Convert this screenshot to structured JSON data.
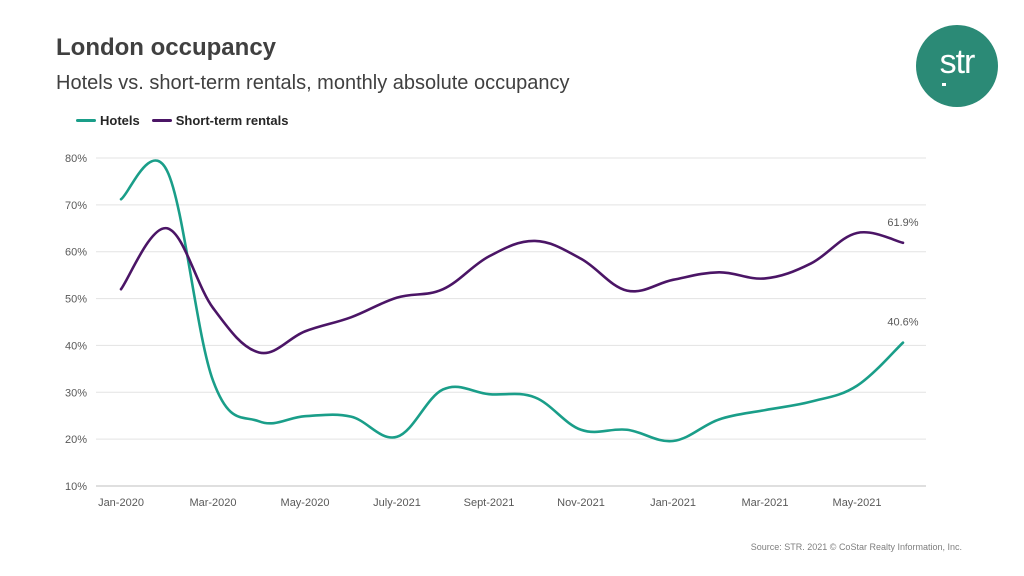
{
  "title": "London occupancy",
  "subtitle": "Hotels vs. short-term rentals, monthly absolute occupancy",
  "logo": {
    "text": "str",
    "color": "#2b8a76"
  },
  "source": "Source: STR. 2021 © CoStar Realty Information, Inc.",
  "chart_data": {
    "type": "line",
    "title": "London occupancy",
    "subtitle": "Hotels vs. short-term rentals, monthly absolute occupancy",
    "x": [
      "Jan-2020",
      "",
      "Mar-2020",
      "",
      "May-2020",
      "",
      "July-2021",
      "",
      "Sept-2021",
      "",
      "Nov-2021",
      "",
      "Jan-2021",
      "",
      "Mar-2021",
      "",
      "May-2021",
      ""
    ],
    "tick_labels": [
      "Jan-2020",
      "Mar-2020",
      "May-2020",
      "July-2021",
      "Sept-2021",
      "Nov-2021",
      "Jan-2021",
      "Mar-2021",
      "May-2021"
    ],
    "yticks": [
      "10%",
      "20%",
      "30%",
      "40%",
      "50%",
      "60%",
      "70%",
      "80%"
    ],
    "ylim": [
      10,
      80
    ],
    "grid": true,
    "legend_position": "top-left",
    "series": [
      {
        "name": "Hotels",
        "color": "#1a9e89",
        "values": [
          71.2,
          77.3,
          32.5,
          23.8,
          24.9,
          24.8,
          20.5,
          30.6,
          29.6,
          28.9,
          22.0,
          22.0,
          19.6,
          24.2,
          26.2,
          28.0,
          31.4,
          40.6
        ],
        "end_label": "40.6%"
      },
      {
        "name": "Short-term rentals",
        "color": "#4b1566",
        "values": [
          52.0,
          65.0,
          48.0,
          38.5,
          43.0,
          46.0,
          50.2,
          52.0,
          59.0,
          62.3,
          58.5,
          51.7,
          54.0,
          55.6,
          54.3,
          57.5,
          64.0,
          61.9
        ],
        "end_label": "61.9%"
      }
    ]
  }
}
